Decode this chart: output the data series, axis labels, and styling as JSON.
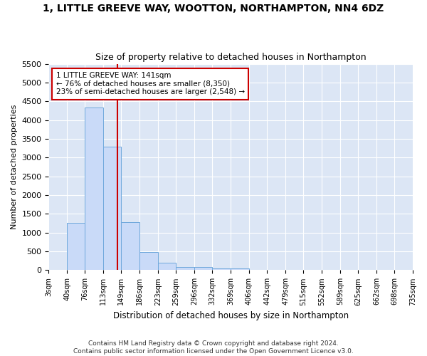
{
  "title": "1, LITTLE GREEVE WAY, WOOTTON, NORTHAMPTON, NN4 6DZ",
  "subtitle": "Size of property relative to detached houses in Northampton",
  "xlabel": "Distribution of detached houses by size in Northampton",
  "ylabel": "Number of detached properties",
  "bar_color": "#c9daf8",
  "bar_edge_color": "#6fa8dc",
  "background_color": "#ffffff",
  "plot_bg_color": "#dce6f5",
  "grid_color": "#ffffff",
  "bin_edges": [
    3,
    40,
    76,
    113,
    149,
    186,
    223,
    259,
    296,
    332,
    369,
    406,
    442,
    479,
    515,
    552,
    589,
    625,
    662,
    698,
    735
  ],
  "bar_heights": [
    0,
    1260,
    4340,
    3300,
    1280,
    480,
    200,
    80,
    80,
    50,
    50,
    0,
    0,
    0,
    0,
    0,
    0,
    0,
    0,
    0
  ],
  "property_size": 141,
  "red_line_color": "#cc0000",
  "annotation_line1": "1 LITTLE GREEVE WAY: 141sqm",
  "annotation_line2": "← 76% of detached houses are smaller (8,350)",
  "annotation_line3": "23% of semi-detached houses are larger (2,548) →",
  "annotation_box_color": "#ffffff",
  "annotation_text_color": "#000000",
  "annotation_border_color": "#cc0000",
  "ylim": [
    0,
    5500
  ],
  "yticks": [
    0,
    500,
    1000,
    1500,
    2000,
    2500,
    3000,
    3500,
    4000,
    4500,
    5000,
    5500
  ],
  "footnote1": "Contains HM Land Registry data © Crown copyright and database right 2024.",
  "footnote2": "Contains public sector information licensed under the Open Government Licence v3.0."
}
